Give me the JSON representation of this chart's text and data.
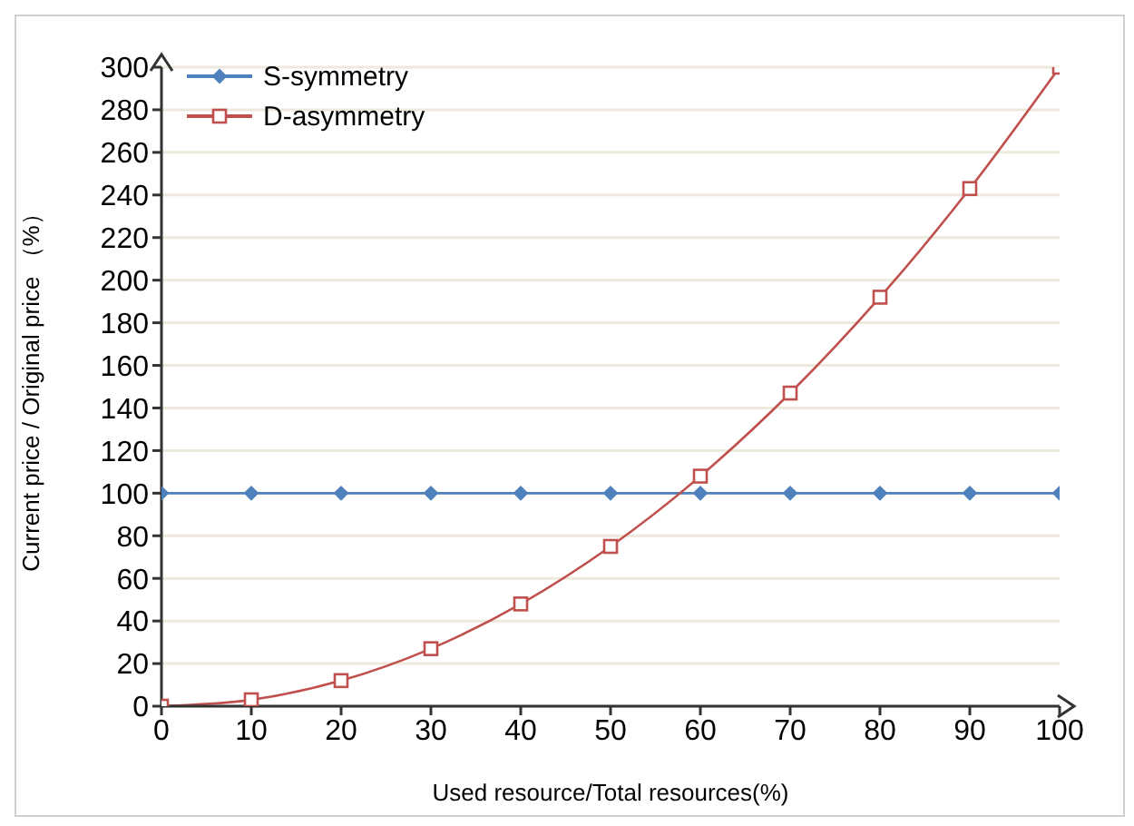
{
  "chart_data": {
    "type": "line",
    "xlabel": "Used resource/Total resources(%)",
    "ylabel": "Current price / Original price （%）",
    "x": [
      0,
      10,
      20,
      30,
      40,
      50,
      60,
      70,
      80,
      90,
      100
    ],
    "series": [
      {
        "name": "S-symmetry",
        "color": "#4f81bd",
        "marker": "diamond",
        "values": [
          100,
          100,
          100,
          100,
          100,
          100,
          100,
          100,
          100,
          100,
          100
        ]
      },
      {
        "name": "D-asymmetry",
        "color": "#c0504d",
        "marker": "square",
        "values": [
          0,
          3,
          12,
          27,
          48,
          75,
          108,
          147,
          192,
          243,
          300
        ]
      }
    ],
    "xlim": [
      0,
      100
    ],
    "xticks": [
      0,
      10,
      20,
      30,
      40,
      50,
      60,
      70,
      80,
      90,
      100
    ],
    "ylim": [
      0,
      300
    ],
    "yticks": [
      0,
      20,
      40,
      60,
      80,
      100,
      120,
      140,
      160,
      180,
      200,
      220,
      240,
      260,
      280,
      300
    ],
    "grid": "y",
    "legend": "top left",
    "line_style": "solid"
  }
}
